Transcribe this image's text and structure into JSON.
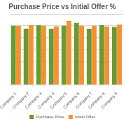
{
  "chart_data": {
    "type": "bar",
    "title": "Purchase Price vs Initial Offer %",
    "categories": [
      "Company 1",
      "Company 2",
      "Company 3",
      "Company 4",
      "Company 5",
      "Company 6",
      "Company 7",
      "Company 8",
      "Company 9"
    ],
    "series": [
      {
        "name": "Purchase Price",
        "color": "#6b9a34",
        "values": [
          100,
          95,
          101,
          95,
          100,
          105,
          95,
          101,
          98
        ]
      },
      {
        "name": "Initial Offer",
        "color": "#f5922f",
        "values": [
          100,
          101,
          100,
          99,
          108,
          100,
          100,
          99,
          102
        ]
      }
    ],
    "ylim": [
      0,
      120
    ],
    "yticks": [
      0,
      20,
      40,
      60,
      80,
      100,
      120
    ],
    "grid": true,
    "legend": "bottom",
    "tick_labels": "x"
  }
}
